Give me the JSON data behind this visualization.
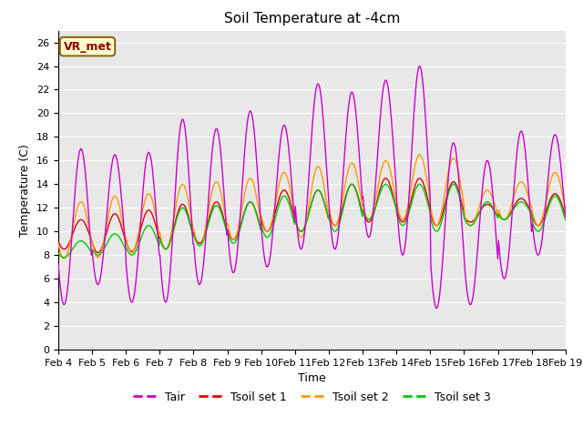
{
  "title": "Soil Temperature at -4cm",
  "xlabel": "Time",
  "ylabel": "Temperature (C)",
  "ylim": [
    0,
    27
  ],
  "xlim": [
    0,
    15
  ],
  "xtick_labels": [
    "Feb 4",
    "Feb 5",
    "Feb 6",
    "Feb 7",
    "Feb 8",
    "Feb 9",
    "Feb 10",
    "Feb 11",
    "Feb 12",
    "Feb 13",
    "Feb 14",
    "Feb 15",
    "Feb 16",
    "Feb 17",
    "Feb 18",
    "Feb 19"
  ],
  "xtick_positions": [
    0,
    1,
    2,
    3,
    4,
    5,
    6,
    7,
    8,
    9,
    10,
    11,
    12,
    13,
    14,
    15
  ],
  "ytick_labels": [
    "0",
    "2",
    "4",
    "6",
    "8",
    "10",
    "12",
    "14",
    "16",
    "18",
    "20",
    "22",
    "24",
    "26"
  ],
  "ytick_positions": [
    0,
    2,
    4,
    6,
    8,
    10,
    12,
    14,
    16,
    18,
    20,
    22,
    24,
    26
  ],
  "label_box": "VR_met",
  "legend_entries": [
    "Tair",
    "Tsoil set 1",
    "Tsoil set 2",
    "Tsoil set 3"
  ],
  "line_colors": [
    "#cc00cc",
    "#dd0000",
    "#ff9900",
    "#00cc00"
  ],
  "bg_color": "#e8e8e8",
  "title_fontsize": 11,
  "axis_fontsize": 9,
  "tick_fontsize": 8,
  "legend_fontsize": 9,
  "grid_color": "#ffffff",
  "tair_daily_peaks": [
    17.0,
    16.5,
    16.7,
    19.5,
    18.7,
    20.2,
    19.0,
    22.5,
    21.8,
    22.8,
    24.0,
    17.5,
    16.0,
    18.5,
    18.2
  ],
  "tair_daily_mins": [
    3.8,
    5.5,
    4.0,
    4.0,
    5.5,
    6.5,
    7.0,
    8.5,
    8.5,
    9.5,
    8.0,
    3.5,
    3.8,
    6.0,
    8.0
  ],
  "tsoil1_daily_peaks": [
    11.0,
    11.5,
    11.8,
    12.3,
    12.5,
    12.5,
    13.5,
    13.5,
    14.0,
    14.5,
    14.5,
    14.2,
    12.3,
    12.8,
    13.2
  ],
  "tsoil1_daily_mins": [
    8.5,
    8.2,
    8.3,
    8.5,
    9.0,
    9.3,
    10.0,
    10.0,
    10.5,
    10.8,
    10.8,
    10.5,
    10.8,
    11.0,
    10.5
  ],
  "tsoil2_daily_peaks": [
    12.5,
    13.0,
    13.2,
    14.0,
    14.2,
    14.5,
    15.0,
    15.5,
    15.8,
    16.0,
    16.5,
    16.2,
    13.5,
    14.2,
    15.0
  ],
  "tsoil2_daily_mins": [
    7.7,
    7.8,
    8.2,
    8.5,
    8.8,
    9.3,
    10.0,
    9.5,
    10.5,
    11.0,
    11.0,
    10.5,
    10.5,
    11.0,
    10.5
  ],
  "tsoil3_daily_peaks": [
    9.2,
    9.8,
    10.5,
    12.0,
    12.2,
    12.5,
    13.0,
    13.5,
    14.0,
    14.0,
    14.0,
    14.0,
    12.5,
    12.5,
    13.0
  ],
  "tsoil3_daily_mins": [
    7.8,
    8.0,
    8.0,
    8.5,
    8.8,
    9.0,
    9.5,
    10.0,
    10.0,
    11.0,
    10.5,
    10.0,
    10.5,
    11.0,
    10.0
  ]
}
